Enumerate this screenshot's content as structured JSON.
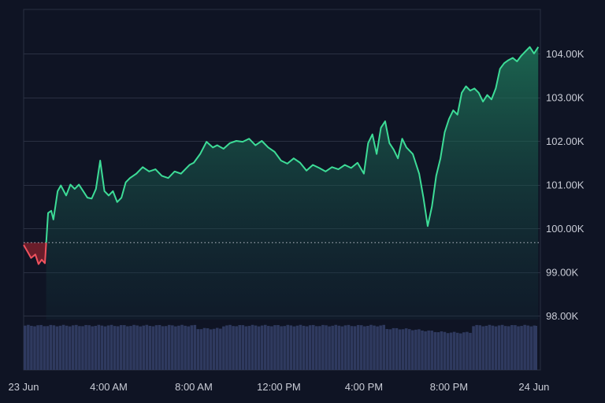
{
  "colors": {
    "background": "#0f1424",
    "grid": "#2a3042",
    "up_line": "#3ddc97",
    "down_line": "#f0525e",
    "down_fill": "#7a1f2b",
    "baseline": "#b7bcc8",
    "volume": "#2f3a5f",
    "axis_text": "#c9ccd6"
  },
  "chart_data": {
    "type": "area",
    "title": "",
    "xlabel": "",
    "ylabel": "",
    "ylim": [
      97000,
      104900
    ],
    "baseline": 99670,
    "grid": true,
    "y_ticks": [
      98000,
      99000,
      100000,
      101000,
      102000,
      103000,
      104000
    ],
    "y_tick_labels": [
      "98.00K",
      "99.00K",
      "100.00K",
      "101.00K",
      "102.00K",
      "103.00K",
      "104.00K"
    ],
    "x_tick_labels": [
      "23 Jun",
      "4:00 AM",
      "8:00 AM",
      "12:00 PM",
      "4:00 PM",
      "8:00 PM",
      "24 Jun"
    ],
    "x_tick_hours": [
      0,
      4,
      8,
      12,
      16,
      20,
      24
    ],
    "x_range_hours": [
      0,
      24.3
    ],
    "series": [
      {
        "x": [
          0,
          0.2,
          0.35,
          0.55,
          0.7,
          0.85,
          1.0,
          1.15,
          1.3,
          1.4,
          1.6,
          1.75,
          2.0,
          2.2,
          2.4,
          2.6,
          2.8,
          3.0,
          3.2,
          3.4,
          3.6,
          3.8,
          4.0,
          4.2,
          4.4,
          4.6,
          4.8,
          5.0,
          5.3,
          5.6,
          5.9,
          6.2,
          6.5,
          6.8,
          7.1,
          7.4,
          7.6,
          7.8,
          8.0,
          8.3,
          8.6,
          8.9,
          9.1,
          9.4,
          9.7,
          10.0,
          10.3,
          10.6,
          10.9,
          11.2,
          11.5,
          11.8,
          12.1,
          12.4,
          12.7,
          13.0,
          13.3,
          13.6,
          13.9,
          14.2,
          14.5,
          14.8,
          15.1,
          15.4,
          15.7,
          16.0,
          16.2,
          16.4,
          16.6,
          16.8,
          17.0,
          17.2,
          17.4,
          17.6,
          17.8,
          18.0,
          18.3,
          18.6,
          18.8,
          19.0,
          19.2,
          19.4,
          19.6,
          19.8,
          20.0,
          20.2,
          20.4,
          20.6,
          20.8,
          21.0,
          21.2,
          21.4,
          21.6,
          21.8,
          22.0,
          22.2,
          22.4,
          22.6,
          22.8,
          23.0,
          23.2,
          23.4,
          23.6,
          23.8,
          24.0,
          24.2
        ],
        "values": [
          99620,
          99450,
          99320,
          99400,
          99180,
          99280,
          99200,
          100350,
          100400,
          100200,
          100850,
          100980,
          100750,
          101000,
          100900,
          101000,
          100850,
          100700,
          100680,
          100900,
          101550,
          100850,
          100750,
          100850,
          100600,
          100700,
          101050,
          101150,
          101250,
          101400,
          101300,
          101350,
          101200,
          101150,
          101300,
          101250,
          101350,
          101450,
          101500,
          101700,
          101980,
          101850,
          101900,
          101820,
          101950,
          102000,
          101980,
          102050,
          101900,
          102000,
          101850,
          101750,
          101550,
          101480,
          101600,
          101500,
          101320,
          101450,
          101380,
          101300,
          101400,
          101350,
          101450,
          101380,
          101500,
          101250,
          101950,
          102150,
          101700,
          102300,
          102450,
          101950,
          101800,
          101600,
          102050,
          101850,
          101700,
          101250,
          100700,
          100050,
          100500,
          101200,
          101600,
          102200,
          102500,
          102700,
          102600,
          103100,
          103250,
          103150,
          103200,
          103100,
          102900,
          103050,
          102950,
          103200,
          103650,
          103780,
          103850,
          103900,
          103820,
          103950,
          104050,
          104150,
          104000,
          104150
        ]
      }
    ],
    "volume_level": 0.88
  }
}
